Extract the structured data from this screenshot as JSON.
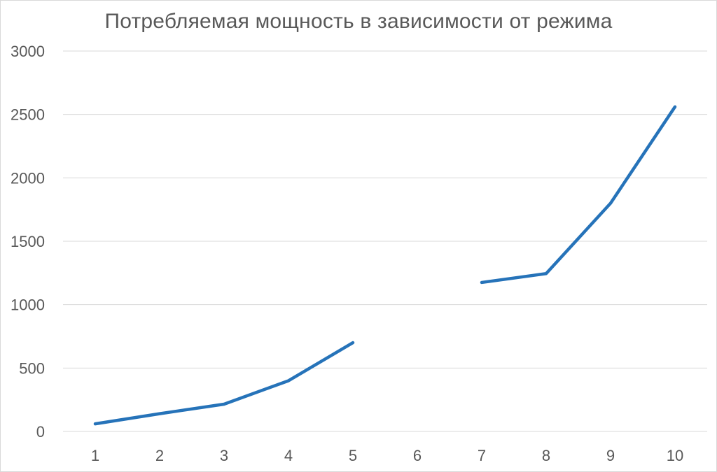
{
  "chart_data": {
    "type": "line",
    "title": "Потребляемая мощность в зависимости от режима",
    "categories": [
      "1",
      "2",
      "3",
      "4",
      "5",
      "6",
      "7",
      "8",
      "9",
      "10"
    ],
    "values": [
      60,
      140,
      215,
      400,
      700,
      null,
      1175,
      1245,
      1800,
      2560
    ],
    "xlabel": "",
    "ylabel": "",
    "ylim": [
      0,
      3000
    ],
    "yticks": [
      0,
      500,
      1000,
      1500,
      2000,
      2500,
      3000
    ],
    "grid": true,
    "legend_position": "none",
    "line_color": "#2673b9",
    "grid_color": "#d9d9d9",
    "axis_text_color": "#595959",
    "title_color": "#595959",
    "background_color": "#ffffff"
  }
}
